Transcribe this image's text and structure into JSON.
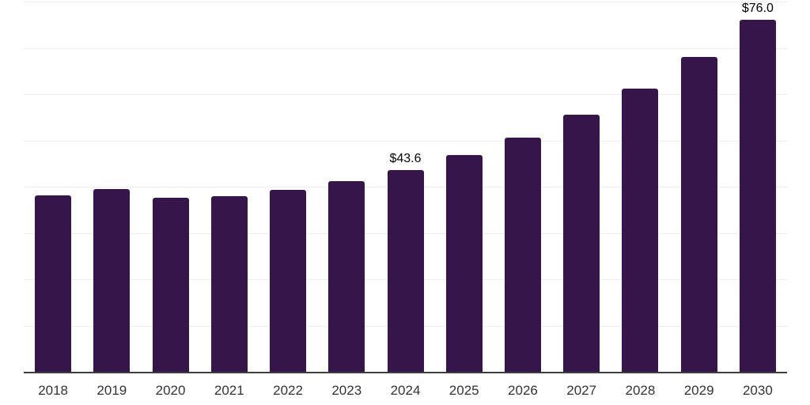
{
  "chart_data": {
    "type": "bar",
    "title": "",
    "xlabel": "",
    "ylabel": "",
    "categories": [
      "2018",
      "2019",
      "2020",
      "2021",
      "2022",
      "2023",
      "2024",
      "2025",
      "2026",
      "2027",
      "2028",
      "2029",
      "2030"
    ],
    "values": [
      38.2,
      39.5,
      37.6,
      38.0,
      39.3,
      41.2,
      43.6,
      46.8,
      50.7,
      55.5,
      61.2,
      68.0,
      76.0
    ],
    "data_labels": {
      "2024": "$43.6",
      "2030": "$76.0"
    },
    "ylim": [
      0,
      80
    ],
    "gridline_step": 10,
    "grid": true,
    "legend": false
  },
  "colors": {
    "bar": "#36154A",
    "gridline": "#ededed",
    "axis_line": "#3d3d3d",
    "tick_label": "#333333",
    "value_label": "#000000",
    "background": "#ffffff"
  }
}
